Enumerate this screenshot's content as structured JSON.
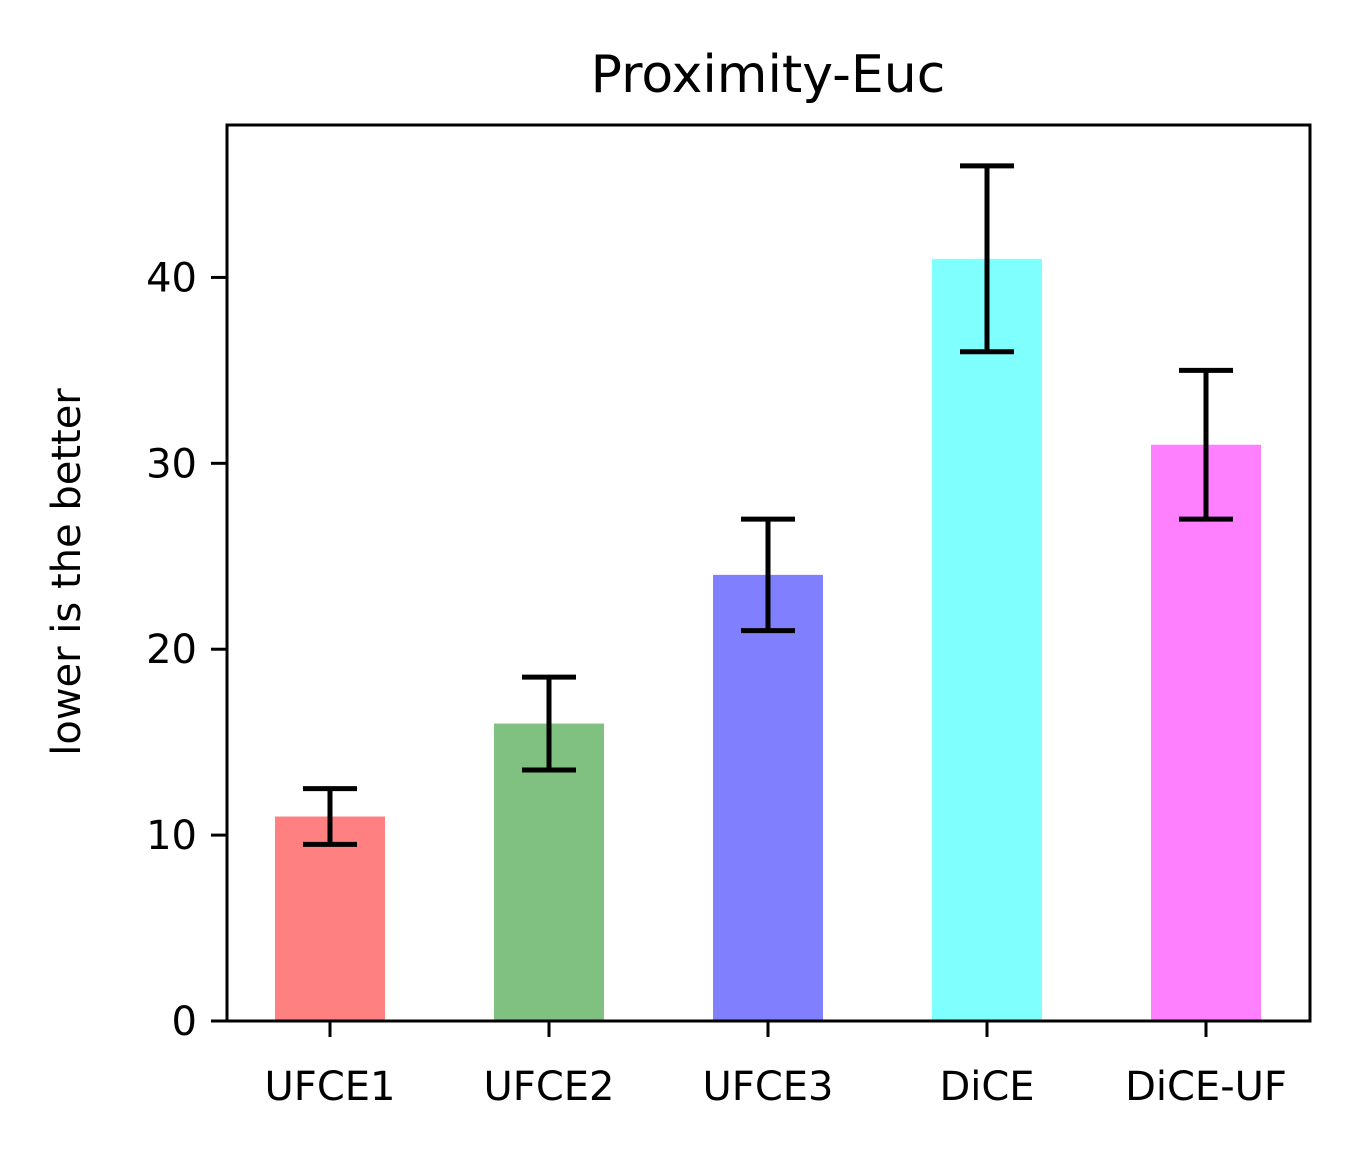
{
  "chart_data": {
    "type": "bar",
    "title": "Proximity-Euc",
    "xlabel": "",
    "ylabel": "lower is the better",
    "categories": [
      "UFCE1",
      "UFCE2",
      "UFCE3",
      "DiCE",
      "DiCE-UF"
    ],
    "values": [
      11,
      16,
      24,
      41,
      31
    ],
    "errors": [
      1.5,
      2.5,
      3,
      5,
      4
    ],
    "colors": [
      "#ff8080",
      "#80c080",
      "#8080ff",
      "#80ffff",
      "#ff80ff"
    ],
    "yticks": [
      0,
      10,
      20,
      30,
      40
    ],
    "ylim": [
      0,
      48.2
    ],
    "grid": false,
    "legend": "none"
  }
}
